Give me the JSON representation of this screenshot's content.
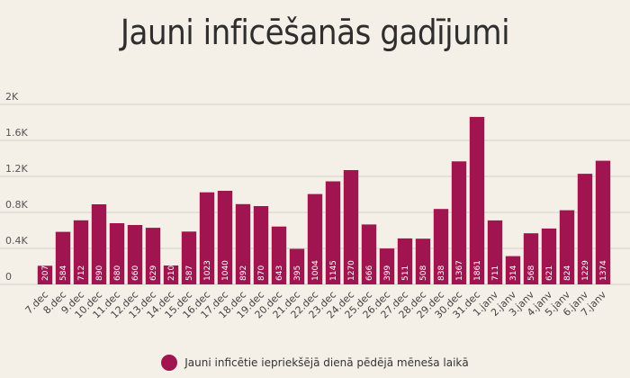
{
  "colors": {
    "bar": "#a0154f",
    "background": "#f4efe7",
    "grid": "#d9d3ca",
    "axis": "#555555"
  },
  "chart_data": {
    "type": "bar",
    "title": "Jauni inficēšanās gadījumi",
    "xlabel": "",
    "ylabel": "",
    "ylim": [
      0,
      2000
    ],
    "yticks": [
      0,
      400,
      800,
      1200,
      1600,
      2000
    ],
    "ytick_labels": [
      "0",
      "0.4K",
      "0.8K",
      "1.2K",
      "1.6K",
      "2K"
    ],
    "grid": true,
    "legend_position": "bottom-center",
    "categories": [
      "7.dec",
      "8.dec",
      "9.dec",
      "10.dec",
      "11.dec",
      "12.dec",
      "13.dec",
      "14.dec",
      "15.dec",
      "16.dec",
      "17.dec",
      "18.dec",
      "19.dec",
      "20.dec",
      "21.dec",
      "22.dec",
      "23.dec",
      "24.dec",
      "25.dec",
      "26.dec",
      "27.dec",
      "28.dec",
      "29.dec",
      "30.dec",
      "31.dec",
      "1.janv",
      "2.janv",
      "3.janv",
      "4.janv",
      "5.janv",
      "6.janv",
      "7.janv"
    ],
    "series": [
      {
        "name": "Jauni inficētie iepriekšējā dienā pēdējā mēneša laikā",
        "values": [
          207,
          584,
          712,
          890,
          680,
          660,
          629,
          210,
          587,
          1023,
          1040,
          892,
          870,
          643,
          395,
          1004,
          1145,
          1270,
          666,
          399,
          511,
          508,
          838,
          1367,
          1861,
          711,
          314,
          568,
          621,
          824,
          1229,
          1374
        ]
      }
    ]
  }
}
